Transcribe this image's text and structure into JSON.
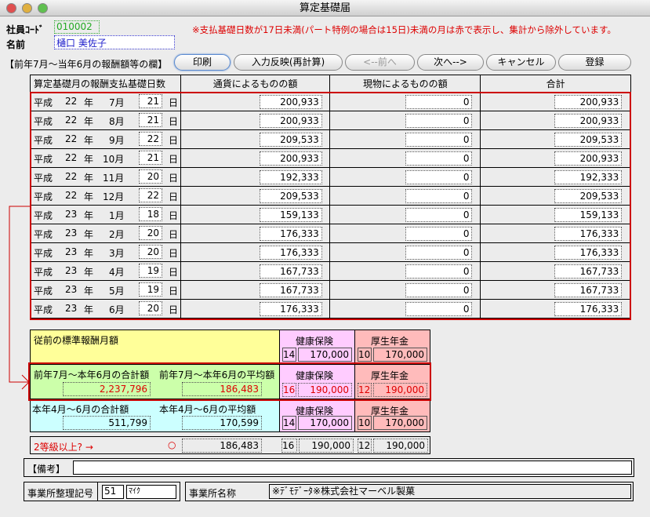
{
  "window": {
    "title": "算定基礎届"
  },
  "header": {
    "employee_code_label": "社員ｺｰﾄﾞ",
    "employee_code": "010002",
    "name_label": "名前",
    "name": "樋口 美佐子",
    "notice": "※支払基礎日数が17日未満(パート特例の場合は15日)未満の月は赤で表示し、集計から除外しています。",
    "section_label": "【前年7月～当年6月の報酬額等の欄】"
  },
  "toolbar": {
    "print": "印刷",
    "recalc": "入力反映(再計算)",
    "prev": "<--前へ",
    "next": "次へ-->",
    "cancel": "キャンセル",
    "register": "登録"
  },
  "table": {
    "headers": [
      "算定基礎月の報酬支払基礎日数",
      "通貨によるものの額",
      "現物によるものの額",
      "合計"
    ],
    "era": "平成",
    "year_unit": "年",
    "day_unit": "日",
    "rows": [
      {
        "year": "22",
        "month": "7月",
        "days": "21",
        "cash": "200,933",
        "kind": "0",
        "total": "200,933"
      },
      {
        "year": "22",
        "month": "8月",
        "days": "21",
        "cash": "200,933",
        "kind": "0",
        "total": "200,933"
      },
      {
        "year": "22",
        "month": "9月",
        "days": "22",
        "cash": "209,533",
        "kind": "0",
        "total": "209,533"
      },
      {
        "year": "22",
        "month": "10月",
        "days": "21",
        "cash": "200,933",
        "kind": "0",
        "total": "200,933"
      },
      {
        "year": "22",
        "month": "11月",
        "days": "20",
        "cash": "192,333",
        "kind": "0",
        "total": "192,333"
      },
      {
        "year": "22",
        "month": "12月",
        "days": "22",
        "cash": "209,533",
        "kind": "0",
        "total": "209,533"
      },
      {
        "year": "23",
        "month": "1月",
        "days": "18",
        "cash": "159,133",
        "kind": "0",
        "total": "159,133"
      },
      {
        "year": "23",
        "month": "2月",
        "days": "20",
        "cash": "176,333",
        "kind": "0",
        "total": "176,333"
      },
      {
        "year": "23",
        "month": "3月",
        "days": "20",
        "cash": "176,333",
        "kind": "0",
        "total": "176,333"
      },
      {
        "year": "23",
        "month": "4月",
        "days": "19",
        "cash": "167,733",
        "kind": "0",
        "total": "167,733"
      },
      {
        "year": "23",
        "month": "5月",
        "days": "19",
        "cash": "167,733",
        "kind": "0",
        "total": "167,733"
      },
      {
        "year": "23",
        "month": "6月",
        "days": "20",
        "cash": "176,333",
        "kind": "0",
        "total": "176,333"
      }
    ]
  },
  "summary": {
    "health_label": "健康保険",
    "pension_label": "厚生年金",
    "previous": {
      "label": "従前の標準報酬月額",
      "health_grade": "14",
      "health_amount": "170,000",
      "pension_grade": "10",
      "pension_amount": "170,000"
    },
    "annual": {
      "total_label": "前年7月～本年6月の合計額",
      "avg_label": "前年7月～本年6月の平均額",
      "total": "2,237,796",
      "avg": "186,483",
      "health_grade": "16",
      "health_amount": "190,000",
      "pension_grade": "12",
      "pension_amount": "190,000"
    },
    "quarter": {
      "total_label": "本年4月～6月の合計額",
      "avg_label": "本年4月～6月の平均額",
      "total": "511,799",
      "avg": "170,599",
      "health_grade": "14",
      "health_amount": "170,000",
      "pension_grade": "10",
      "pension_amount": "170,000"
    },
    "two_grade": {
      "label": "2等級以上? →",
      "mark": "○",
      "avg": "186,483",
      "health_grade": "16",
      "health_amount": "190,000",
      "pension_grade": "12",
      "pension_amount": "190,000"
    }
  },
  "remarks": {
    "label": "【備考】",
    "value": ""
  },
  "office": {
    "number_label": "事業所整理記号",
    "number": "51",
    "code": "ﾏｲｸ",
    "name_label": "事業所名称",
    "name": "※ﾃﾞﾓﾃﾞｰﾀ※株式会社マーベル製菓"
  },
  "colors": {
    "alert": "#dd0000",
    "yellow": "#ffff99",
    "green": "#ccffaa",
    "cyan": "#ccffff",
    "pink": "#ffccff",
    "salmon": "#ffbbbb"
  }
}
